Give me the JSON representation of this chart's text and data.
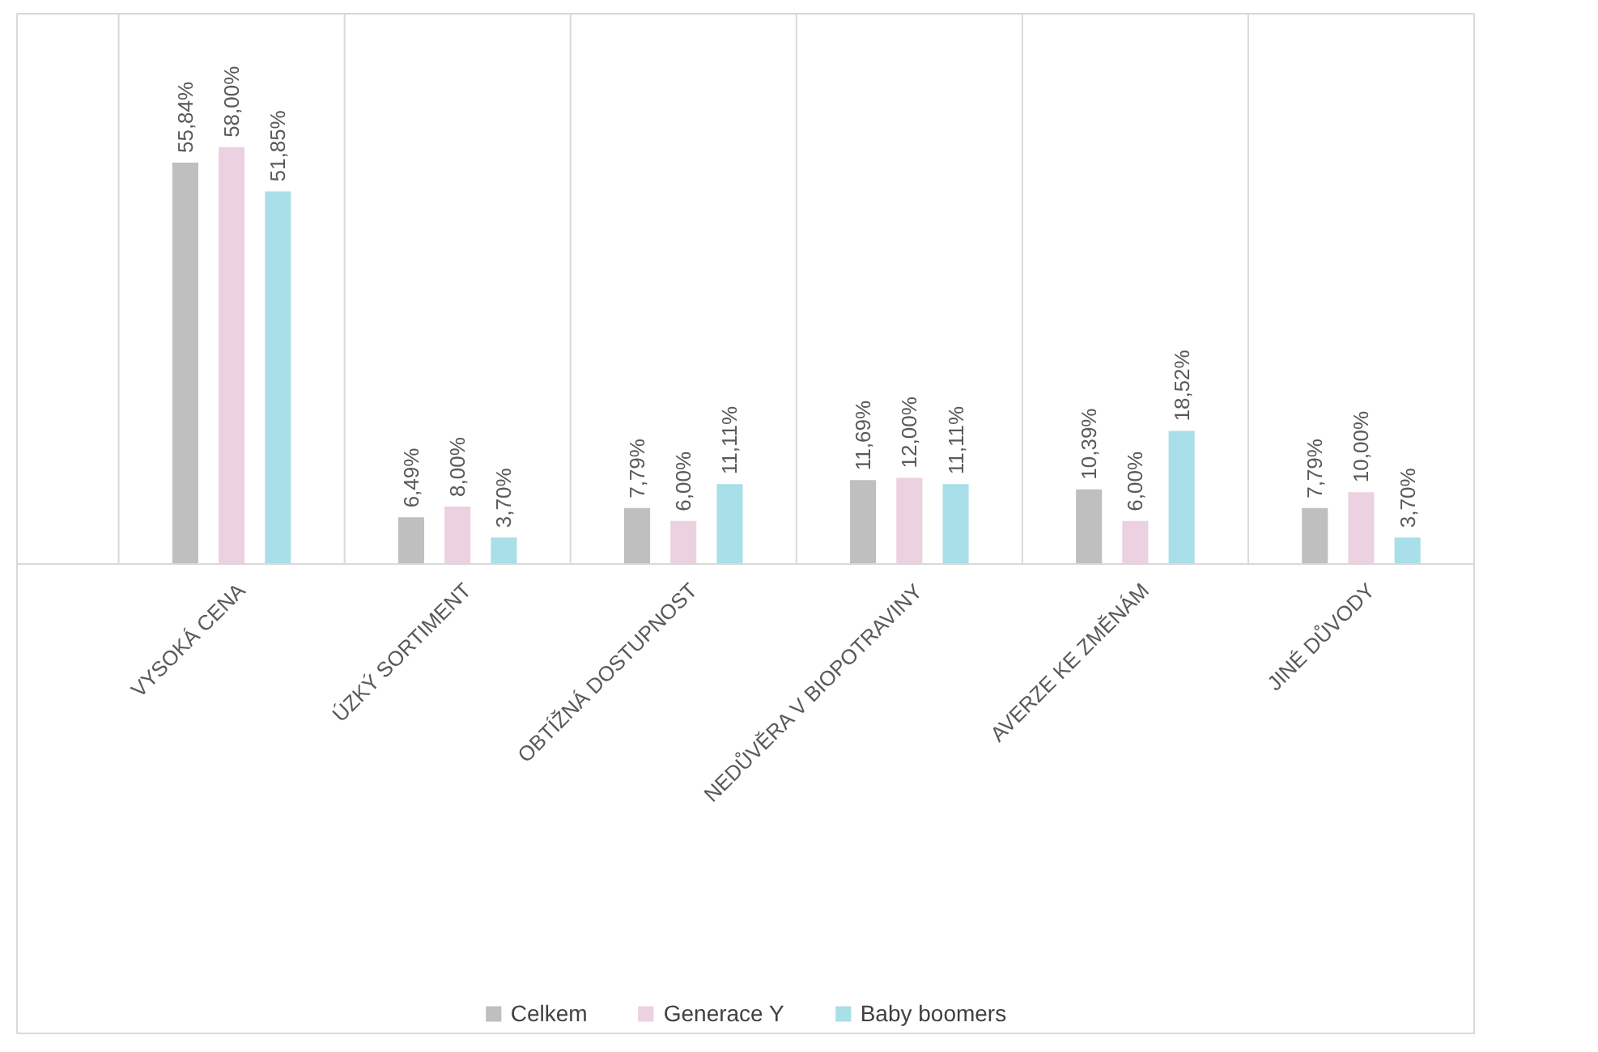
{
  "chart_data": {
    "type": "bar",
    "categories": [
      "VYSOKÁ CENA",
      "ÚZKÝ SORTIMENT",
      "OBTÍŽNÁ DOSTUPNOST",
      "NEDŮVĚRA V BIOPOTRAVINY",
      "AVERZE KE ZMĚNÁM",
      "JINÉ DŮVODY"
    ],
    "series": [
      {
        "name": "Celkem",
        "color": "#bfbfbf",
        "values": [
          55.84,
          6.49,
          7.79,
          11.69,
          10.39,
          7.79
        ],
        "value_labels": [
          "55,84%",
          "6,49%",
          "7,79%",
          "11,69%",
          "10,39%",
          "7,79%"
        ]
      },
      {
        "name": "Generace Y",
        "color": "#ecd1e1",
        "values": [
          58.0,
          8.0,
          6.0,
          12.0,
          6.0,
          10.0
        ],
        "value_labels": [
          "58,00%",
          "8,00%",
          "6,00%",
          "12,00%",
          "6,00%",
          "10,00%"
        ]
      },
      {
        "name": "Baby boomers",
        "color": "#a9dfe8",
        "values": [
          51.85,
          3.7,
          11.11,
          11.11,
          18.52,
          3.7
        ],
        "value_labels": [
          "51,85%",
          "3,70%",
          "11,11%",
          "11,11%",
          "18,52%",
          "3,70%"
        ]
      }
    ],
    "grid": "x",
    "legend": "bottom"
  }
}
